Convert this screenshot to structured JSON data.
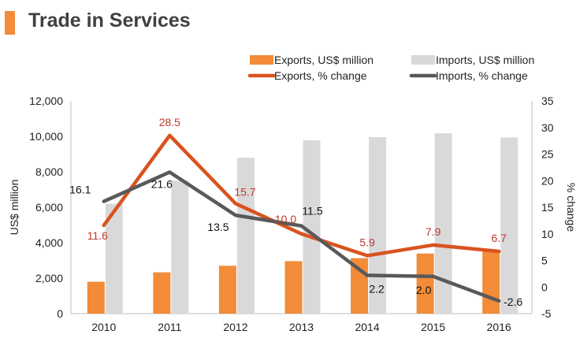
{
  "header": {
    "title": "Trade in Services",
    "accent": "#f28c38"
  },
  "chart_data": {
    "type": "bar+line",
    "title": "Trade in Services",
    "categories": [
      "2010",
      "2011",
      "2012",
      "2013",
      "2014",
      "2015",
      "2016"
    ],
    "y_left": {
      "label": "US$ million",
      "ticks": [
        "0",
        "2,000",
        "4,000",
        "6,000",
        "8,000",
        "10,000",
        "12,000"
      ],
      "lim": [
        0,
        12000
      ]
    },
    "y_right": {
      "label": "% change",
      "ticks": [
        "-5",
        "0",
        "5",
        "10",
        "15",
        "20",
        "25",
        "30",
        "35"
      ],
      "lim": [
        -5,
        35
      ]
    },
    "bars": [
      {
        "name": "Exports, US$ million",
        "color": "#f28c38",
        "values": [
          1800,
          2330,
          2700,
          2960,
          3130,
          3390,
          3600
        ]
      },
      {
        "name": "Imports, US$ million",
        "color": "#d9d9d9",
        "values": [
          6200,
          7500,
          8790,
          9780,
          9960,
          10170,
          9940
        ]
      }
    ],
    "lines": [
      {
        "name": "Exports, % change",
        "color": "#d9531e",
        "label_color": "#c0392b",
        "values": [
          11.6,
          28.5,
          15.7,
          10.0,
          5.9,
          7.9,
          6.7
        ],
        "labels": [
          "11.6",
          "28.5",
          "15.7",
          "10.0",
          "5.9",
          "7.9",
          "6.7"
        ]
      },
      {
        "name": "Imports, % change",
        "color": "#595959",
        "label_color": "#111111",
        "values": [
          16.1,
          21.6,
          13.5,
          11.5,
          2.2,
          2.0,
          -2.6
        ],
        "labels": [
          "16.1",
          "21.6",
          "13.5",
          "11.5",
          "2.2",
          "2.0",
          "-2.6"
        ]
      }
    ],
    "legend_position": "top"
  }
}
